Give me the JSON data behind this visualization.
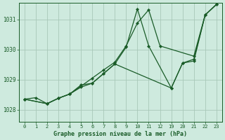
{
  "bg_color": "#ceeade",
  "grid_color": "#a8c8b8",
  "line_color": "#1a5c28",
  "text_color": "#1a5c28",
  "xlabel": "Graphe pression niveau de la mer (hPa)",
  "ylim": [
    1027.6,
    1031.55
  ],
  "yticks": [
    1028,
    1029,
    1030,
    1031
  ],
  "xlabels": [
    "0",
    "1",
    "2",
    "3",
    "4",
    "5",
    "6",
    "7",
    "8",
    "9",
    "10",
    "11",
    "12",
    "19",
    "20",
    "21",
    "22",
    "23"
  ],
  "series": [
    {
      "xi": [
        0,
        1,
        2,
        3,
        4,
        5,
        6,
        7,
        8,
        9,
        10,
        11,
        12,
        15,
        16,
        17
      ],
      "y": [
        1028.35,
        1028.4,
        1028.2,
        1028.38,
        1028.52,
        1028.78,
        1029.05,
        1029.32,
        1029.58,
        1030.12,
        1030.88,
        1031.32,
        1030.12,
        1029.78,
        1031.15,
        1031.5
      ]
    },
    {
      "xi": [
        0,
        2,
        3,
        4,
        5,
        6,
        7,
        8,
        9,
        10,
        11,
        13,
        14,
        15,
        16,
        17
      ],
      "y": [
        1028.35,
        1028.2,
        1028.38,
        1028.52,
        1028.82,
        1028.88,
        1029.2,
        1029.52,
        1030.08,
        1031.35,
        1030.12,
        1028.72,
        1029.55,
        1029.68,
        1031.15,
        1031.5
      ]
    },
    {
      "xi": [
        0,
        2,
        3,
        4,
        5,
        6,
        7,
        8,
        13,
        14,
        15,
        16,
        17
      ],
      "y": [
        1028.35,
        1028.2,
        1028.38,
        1028.52,
        1028.75,
        1028.88,
        1029.2,
        1029.52,
        1028.72,
        1029.55,
        1029.62,
        1031.15,
        1031.5
      ]
    }
  ]
}
